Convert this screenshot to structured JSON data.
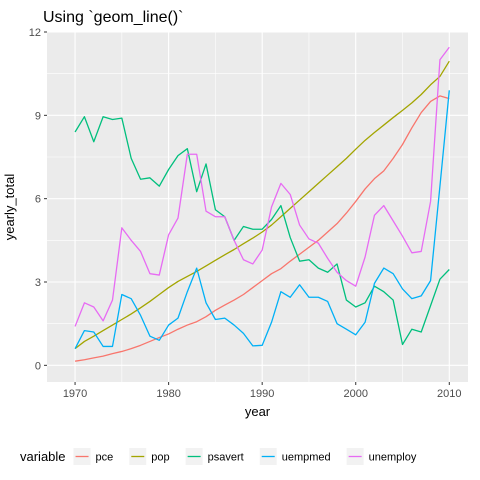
{
  "chart_data": {
    "type": "line",
    "title": "Using `geom_line()`",
    "xlabel": "year",
    "ylabel": "yearly_total",
    "xlim": [
      1967,
      2012
    ],
    "ylim": [
      -0.6,
      12.0
    ],
    "x_ticks": [
      1970,
      1980,
      1990,
      2000,
      2010
    ],
    "y_ticks": [
      0,
      3,
      6,
      9,
      12
    ],
    "grid": true,
    "legend_title": "variable",
    "legend_position": "bottom",
    "x": [
      1970,
      1971,
      1972,
      1973,
      1974,
      1975,
      1976,
      1977,
      1978,
      1979,
      1980,
      1981,
      1982,
      1983,
      1984,
      1985,
      1986,
      1987,
      1988,
      1989,
      1990,
      1991,
      1992,
      1993,
      1994,
      1995,
      1996,
      1997,
      1998,
      1999,
      2000,
      2001,
      2002,
      2003,
      2004,
      2005,
      2006,
      2007,
      2008,
      2009,
      2010
    ],
    "series": [
      {
        "name": "pce",
        "color": "#F8766D",
        "values": [
          0.15,
          0.2,
          0.27,
          0.33,
          0.42,
          0.5,
          0.6,
          0.72,
          0.86,
          1.0,
          1.13,
          1.3,
          1.45,
          1.57,
          1.75,
          1.98,
          2.17,
          2.35,
          2.55,
          2.8,
          3.05,
          3.3,
          3.48,
          3.75,
          4.0,
          4.25,
          4.5,
          4.8,
          5.1,
          5.48,
          5.9,
          6.35,
          6.72,
          7.0,
          7.45,
          7.95,
          8.55,
          9.1,
          9.5,
          9.7,
          9.6
        ]
      },
      {
        "name": "pop",
        "color": "#A3A500",
        "values": [
          0.6,
          0.86,
          1.05,
          1.25,
          1.45,
          1.65,
          1.85,
          2.07,
          2.3,
          2.55,
          2.8,
          3.02,
          3.2,
          3.38,
          3.58,
          3.78,
          3.98,
          4.17,
          4.38,
          4.58,
          4.8,
          5.05,
          5.35,
          5.65,
          5.95,
          6.25,
          6.55,
          6.85,
          7.15,
          7.45,
          7.78,
          8.1,
          8.38,
          8.65,
          8.92,
          9.18,
          9.45,
          9.75,
          10.1,
          10.4,
          10.95
        ]
      },
      {
        "name": "psavert",
        "color": "#00BF7D",
        "values": [
          8.4,
          8.95,
          8.05,
          8.95,
          8.85,
          8.9,
          7.45,
          6.7,
          6.75,
          6.45,
          7.05,
          7.55,
          7.8,
          6.25,
          7.25,
          5.6,
          5.35,
          4.5,
          5.0,
          4.9,
          4.9,
          5.25,
          5.75,
          4.6,
          3.75,
          3.8,
          3.5,
          3.35,
          3.65,
          2.35,
          2.1,
          2.25,
          2.85,
          2.65,
          2.35,
          0.75,
          1.3,
          1.2,
          2.15,
          3.1,
          3.45
        ]
      },
      {
        "name": "uempmed",
        "color": "#00B0F6",
        "values": [
          0.6,
          1.25,
          1.2,
          0.68,
          0.68,
          2.55,
          2.4,
          1.8,
          1.05,
          0.9,
          1.45,
          1.7,
          2.65,
          3.5,
          2.25,
          1.65,
          1.7,
          1.45,
          1.15,
          0.7,
          0.72,
          1.55,
          2.65,
          2.45,
          2.9,
          2.45,
          2.45,
          2.3,
          1.5,
          1.3,
          1.1,
          1.55,
          2.95,
          3.5,
          3.3,
          2.75,
          2.4,
          2.5,
          3.05,
          6.45,
          9.9
        ]
      },
      {
        "name": "unemploy",
        "color": "#E76BF3",
        "values": [
          1.4,
          2.25,
          2.1,
          1.6,
          2.35,
          4.95,
          4.5,
          4.1,
          3.3,
          3.25,
          4.7,
          5.3,
          7.6,
          7.6,
          5.55,
          5.35,
          5.35,
          4.5,
          3.8,
          3.65,
          4.15,
          5.7,
          6.55,
          6.15,
          5.05,
          4.55,
          4.4,
          3.85,
          3.35,
          3.05,
          2.85,
          3.9,
          5.4,
          5.75,
          5.2,
          4.65,
          4.05,
          4.1,
          5.9,
          11.0,
          11.45
        ]
      }
    ]
  }
}
